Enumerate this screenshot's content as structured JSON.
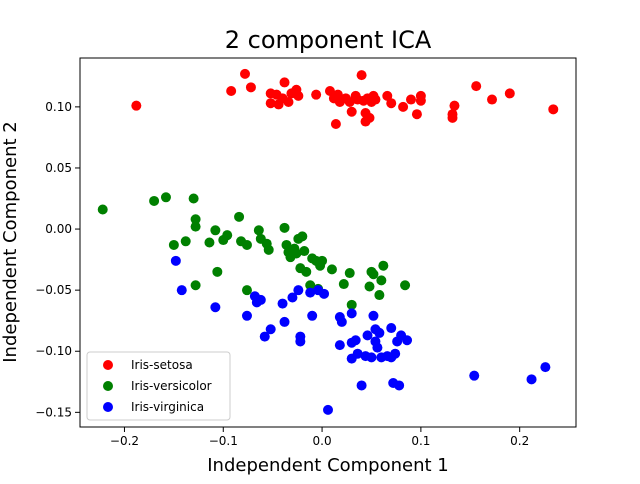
{
  "chart_data": {
    "type": "scatter",
    "title": "2 component ICA",
    "xlabel": "Independent Component 1",
    "ylabel": "Independent Component 2",
    "xlim": [
      -0.245,
      0.257
    ],
    "ylim": [
      -0.162,
      0.14
    ],
    "xticks": [
      -0.2,
      -0.1,
      0.0,
      0.1,
      0.2
    ],
    "xtick_labels": [
      "−0.2",
      "−0.1",
      "0.0",
      "0.1",
      "0.2"
    ],
    "yticks": [
      -0.15,
      -0.1,
      -0.05,
      0.0,
      0.05,
      0.1
    ],
    "ytick_labels": [
      "−0.15",
      "−0.10",
      "−0.05",
      "0.00",
      "0.05",
      "0.10"
    ],
    "grid": false,
    "legend_position": "lower-left",
    "series": [
      {
        "name": "Iris-setosa",
        "color": "#ff0000",
        "points": [
          [
            -0.188,
            0.101
          ],
          [
            -0.092,
            0.113
          ],
          [
            -0.078,
            0.127
          ],
          [
            -0.072,
            0.116
          ],
          [
            -0.052,
            0.111
          ],
          [
            -0.052,
            0.103
          ],
          [
            -0.046,
            0.11
          ],
          [
            -0.044,
            0.102
          ],
          [
            -0.04,
            0.107
          ],
          [
            -0.038,
            0.12
          ],
          [
            -0.034,
            0.104
          ],
          [
            -0.031,
            0.111
          ],
          [
            -0.026,
            0.114
          ],
          [
            -0.024,
            0.109
          ],
          [
            -0.006,
            0.11
          ],
          [
            0.008,
            0.113
          ],
          [
            0.012,
            0.107
          ],
          [
            0.016,
            0.11
          ],
          [
            0.014,
            0.086
          ],
          [
            0.018,
            0.104
          ],
          [
            0.024,
            0.107
          ],
          [
            0.028,
            0.104
          ],
          [
            0.03,
            0.096
          ],
          [
            0.034,
            0.109
          ],
          [
            0.036,
            0.106
          ],
          [
            0.04,
            0.126
          ],
          [
            0.042,
            0.105
          ],
          [
            0.044,
            0.095
          ],
          [
            0.044,
            0.088
          ],
          [
            0.046,
            0.107
          ],
          [
            0.048,
            0.091
          ],
          [
            0.05,
            0.104
          ],
          [
            0.052,
            0.109
          ],
          [
            0.054,
            0.106
          ],
          [
            0.066,
            0.109
          ],
          [
            0.07,
            0.103
          ],
          [
            0.082,
            0.1
          ],
          [
            0.09,
            0.106
          ],
          [
            0.096,
            0.094
          ],
          [
            0.1,
            0.105
          ],
          [
            0.1,
            0.109
          ],
          [
            0.132,
            0.094
          ],
          [
            0.132,
            0.091
          ],
          [
            0.134,
            0.101
          ],
          [
            0.156,
            0.117
          ],
          [
            0.172,
            0.106
          ],
          [
            0.19,
            0.111
          ],
          [
            0.234,
            0.098
          ]
        ]
      },
      {
        "name": "Iris-versicolor",
        "color": "#008000",
        "points": [
          [
            -0.222,
            0.016
          ],
          [
            -0.17,
            0.023
          ],
          [
            -0.158,
            0.026
          ],
          [
            -0.13,
            0.025
          ],
          [
            -0.128,
            0.008
          ],
          [
            -0.128,
            0.002
          ],
          [
            -0.15,
            -0.013
          ],
          [
            -0.138,
            -0.01
          ],
          [
            -0.114,
            -0.011
          ],
          [
            -0.108,
            -0.001
          ],
          [
            -0.1,
            -0.009
          ],
          [
            -0.096,
            -0.005
          ],
          [
            -0.084,
            0.01
          ],
          [
            -0.082,
            -0.01
          ],
          [
            -0.076,
            -0.013
          ],
          [
            -0.064,
            -0.001
          ],
          [
            -0.062,
            -0.008
          ],
          [
            -0.056,
            -0.012
          ],
          [
            -0.054,
            -0.017
          ],
          [
            -0.038,
            0.001
          ],
          [
            -0.036,
            -0.013
          ],
          [
            -0.034,
            -0.019
          ],
          [
            -0.032,
            -0.023
          ],
          [
            -0.028,
            -0.016
          ],
          [
            -0.026,
            -0.02
          ],
          [
            -0.024,
            -0.008
          ],
          [
            -0.022,
            -0.032
          ],
          [
            -0.02,
            -0.006
          ],
          [
            -0.018,
            -0.018
          ],
          [
            -0.016,
            -0.035
          ],
          [
            -0.01,
            -0.024
          ],
          [
            -0.006,
            -0.026
          ],
          [
            -0.002,
            -0.03
          ],
          [
            0.0,
            -0.026
          ],
          [
            0.01,
            -0.033
          ],
          [
            0.022,
            -0.045
          ],
          [
            0.028,
            -0.036
          ],
          [
            0.03,
            -0.062
          ],
          [
            0.048,
            -0.047
          ],
          [
            0.05,
            -0.035
          ],
          [
            0.052,
            -0.037
          ],
          [
            0.058,
            -0.054
          ],
          [
            0.06,
            -0.042
          ],
          [
            0.062,
            -0.03
          ],
          [
            0.084,
            -0.046
          ],
          [
            -0.128,
            -0.046
          ],
          [
            -0.106,
            -0.035
          ],
          [
            -0.076,
            -0.05
          ],
          [
            -0.012,
            -0.046
          ],
          [
            -0.004,
            -0.049
          ]
        ]
      },
      {
        "name": "Iris-virginica",
        "color": "#0000ff",
        "points": [
          [
            -0.148,
            -0.026
          ],
          [
            -0.142,
            -0.05
          ],
          [
            -0.108,
            -0.064
          ],
          [
            -0.076,
            -0.071
          ],
          [
            -0.068,
            -0.055
          ],
          [
            -0.066,
            -0.06
          ],
          [
            -0.062,
            -0.058
          ],
          [
            -0.058,
            -0.088
          ],
          [
            -0.052,
            -0.082
          ],
          [
            -0.04,
            -0.061
          ],
          [
            -0.038,
            -0.076
          ],
          [
            -0.03,
            -0.056
          ],
          [
            -0.024,
            -0.05
          ],
          [
            -0.022,
            -0.088
          ],
          [
            -0.022,
            -0.092
          ],
          [
            -0.012,
            -0.052
          ],
          [
            -0.01,
            -0.071
          ],
          [
            -0.004,
            -0.05
          ],
          [
            0.002,
            -0.053
          ],
          [
            0.006,
            -0.148
          ],
          [
            0.018,
            -0.095
          ],
          [
            0.018,
            -0.072
          ],
          [
            0.02,
            -0.076
          ],
          [
            0.03,
            -0.069
          ],
          [
            0.03,
            -0.106
          ],
          [
            0.03,
            -0.093
          ],
          [
            0.034,
            -0.091
          ],
          [
            0.036,
            -0.102
          ],
          [
            0.04,
            -0.128
          ],
          [
            0.044,
            -0.104
          ],
          [
            0.046,
            -0.087
          ],
          [
            0.05,
            -0.105
          ],
          [
            0.052,
            -0.071
          ],
          [
            0.054,
            -0.082
          ],
          [
            0.054,
            -0.092
          ],
          [
            0.056,
            -0.097
          ],
          [
            0.058,
            -0.085
          ],
          [
            0.06,
            -0.105
          ],
          [
            0.066,
            -0.104
          ],
          [
            0.07,
            -0.081
          ],
          [
            0.072,
            -0.126
          ],
          [
            0.074,
            -0.102
          ],
          [
            0.076,
            -0.092
          ],
          [
            0.078,
            -0.128
          ],
          [
            0.08,
            -0.087
          ],
          [
            0.086,
            -0.091
          ],
          [
            0.154,
            -0.12
          ],
          [
            0.212,
            -0.123
          ],
          [
            0.226,
            -0.113
          ],
          [
            0.07,
            -0.105
          ]
        ]
      }
    ]
  }
}
